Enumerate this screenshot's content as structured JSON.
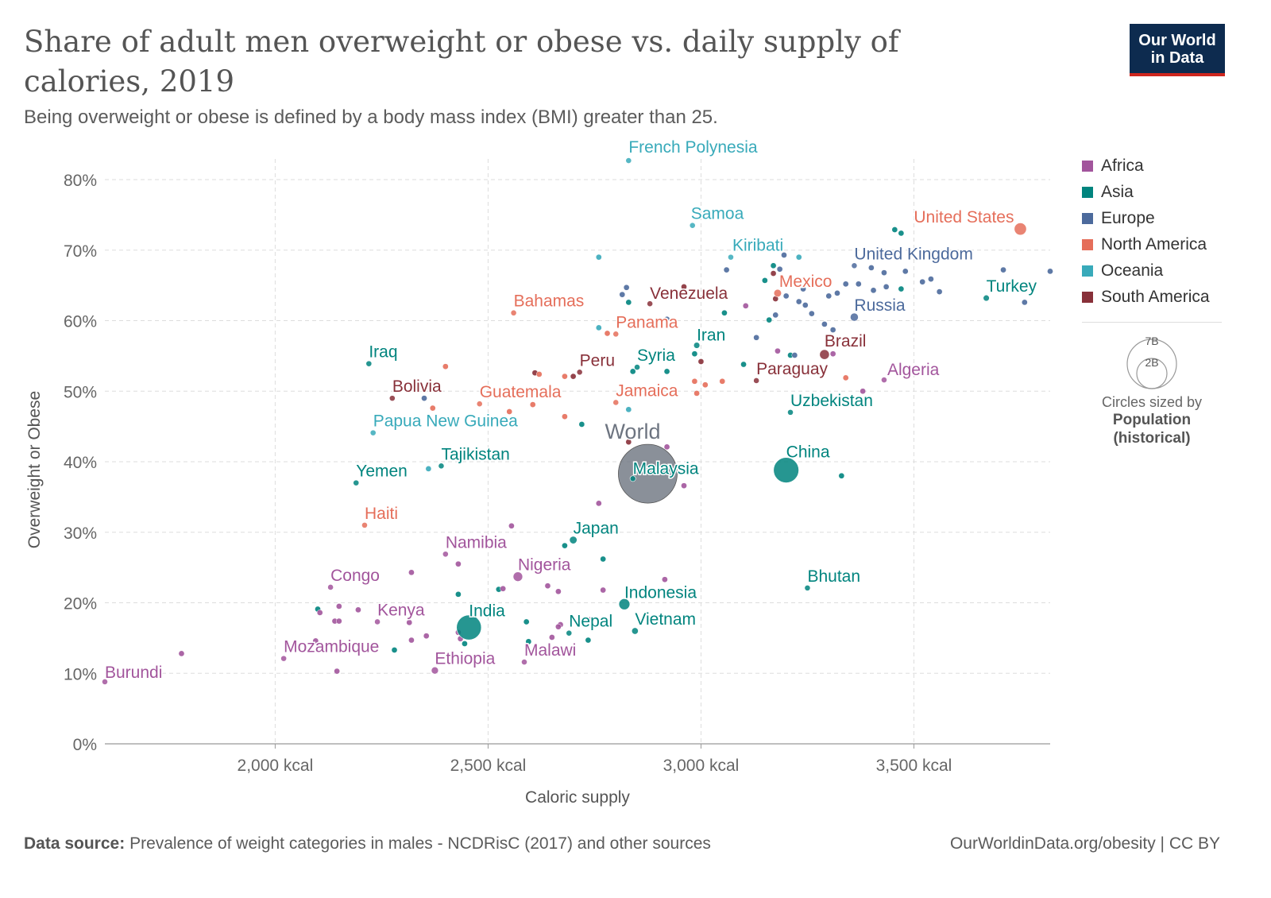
{
  "header": {
    "title": "Share of adult men overweight or obese vs. daily supply of calories, 2019",
    "subtitle": "Being overweight or obese is defined by a body mass index (BMI) greater than 25.",
    "logo_line1": "Our World",
    "logo_line2": "in Data"
  },
  "legend": {
    "items": [
      {
        "label": "Africa",
        "color": "#a2559c"
      },
      {
        "label": "Asia",
        "color": "#00847e"
      },
      {
        "label": "Europe",
        "color": "#4c6a9c"
      },
      {
        "label": "North America",
        "color": "#e56e5a"
      },
      {
        "label": "Oceania",
        "color": "#38aaba"
      },
      {
        "label": "South America",
        "color": "#883039"
      }
    ],
    "size_big": "7B",
    "size_small": "2B",
    "size_note": "Circles sized by",
    "size_var_line1": "Population",
    "size_var_line2": "(historical)"
  },
  "footer": {
    "source_label": "Data source:",
    "source_text": "Prevalence of weight categories in males - NCDRisC (2017) and other sources",
    "credit": "OurWorldinData.org/obesity | CC BY"
  },
  "chart_data": {
    "type": "scatter",
    "title": "Share of adult men overweight or obese vs. daily supply of calories, 2019",
    "xlabel": "Caloric supply",
    "ylabel": "Overweight or Obese",
    "xlim": [
      1600,
      3820
    ],
    "ylim": [
      0,
      80
    ],
    "x_ticks": [
      2000,
      2500,
      3000,
      3500
    ],
    "x_tick_labels": [
      "2,000 kcal",
      "2,500 kcal",
      "3,000 kcal",
      "3,500 kcal"
    ],
    "y_ticks": [
      0,
      10,
      20,
      30,
      40,
      50,
      60,
      70,
      80
    ],
    "y_tick_labels": [
      "0%",
      "10%",
      "20%",
      "30%",
      "40%",
      "50%",
      "60%",
      "70%",
      "80%"
    ],
    "grid": true,
    "colors": {
      "Africa": "#a2559c",
      "Asia": "#00847e",
      "Europe": "#4c6a9c",
      "North America": "#e56e5a",
      "Oceania": "#38aaba",
      "South America": "#883039",
      "World": "#6d7480"
    },
    "labeled_points": [
      {
        "name": "French Polynesia",
        "x": 2830,
        "y": 82.7,
        "region": "Oceania",
        "pop": 0.0003
      },
      {
        "name": "Samoa",
        "x": 2980,
        "y": 73.5,
        "region": "Oceania",
        "pop": 0.0002
      },
      {
        "name": "United States",
        "x": 3750,
        "y": 73,
        "region": "North America",
        "pop": 0.33
      },
      {
        "name": "Kiribati",
        "x": 3070,
        "y": 69,
        "region": "Oceania",
        "pop": 0.0001
      },
      {
        "name": "United Kingdom",
        "x": 3360,
        "y": 67.8,
        "region": "Europe",
        "pop": 0.067
      },
      {
        "name": "Mexico",
        "x": 3180,
        "y": 63.9,
        "region": "North America",
        "pop": 0.13
      },
      {
        "name": "Turkey",
        "x": 3670,
        "y": 63.2,
        "region": "Asia",
        "pop": 0.083
      },
      {
        "name": "Venezuela",
        "x": 2880,
        "y": 62.4,
        "region": "South America",
        "pop": 0.028
      },
      {
        "name": "Bahamas",
        "x": 2560,
        "y": 61.1,
        "region": "North America",
        "pop": 0.0004
      },
      {
        "name": "Russia",
        "x": 3360,
        "y": 60.5,
        "region": "Europe",
        "pop": 0.145
      },
      {
        "name": "Panama",
        "x": 2800,
        "y": 58.1,
        "region": "North America",
        "pop": 0.004
      },
      {
        "name": "Iran",
        "x": 2990,
        "y": 56.5,
        "region": "Asia",
        "pop": 0.084
      },
      {
        "name": "Brazil",
        "x": 3290,
        "y": 55.2,
        "region": "South America",
        "pop": 0.21
      },
      {
        "name": "Iraq",
        "x": 2220,
        "y": 53.9,
        "region": "Asia",
        "pop": 0.04
      },
      {
        "name": "Syria",
        "x": 2850,
        "y": 53.4,
        "region": "Asia",
        "pop": 0.02
      },
      {
        "name": "Peru",
        "x": 2715,
        "y": 52.7,
        "region": "South America",
        "pop": 0.033
      },
      {
        "name": "Paraguay",
        "x": 3130,
        "y": 51.5,
        "region": "South America",
        "pop": 0.007
      },
      {
        "name": "Algeria",
        "x": 3430,
        "y": 51.6,
        "region": "Africa",
        "pop": 0.043
      },
      {
        "name": "Bolivia",
        "x": 2275,
        "y": 49,
        "region": "South America",
        "pop": 0.012
      },
      {
        "name": "Guatemala",
        "x": 2480,
        "y": 48.2,
        "region": "North America",
        "pop": 0.017
      },
      {
        "name": "Jamaica",
        "x": 2800,
        "y": 48.4,
        "region": "North America",
        "pop": 0.003
      },
      {
        "name": "Uzbekistan",
        "x": 3210,
        "y": 47,
        "region": "Asia",
        "pop": 0.034
      },
      {
        "name": "Papua New Guinea",
        "x": 2230,
        "y": 44.1,
        "region": "Oceania",
        "pop": 0.009
      },
      {
        "name": "World",
        "x": 2875,
        "y": 38.3,
        "region": "World",
        "pop": 7.7
      },
      {
        "name": "China",
        "x": 3200,
        "y": 38.8,
        "region": "Asia",
        "pop": 1.42
      },
      {
        "name": "Malaysia",
        "x": 2840,
        "y": 37.6,
        "region": "Asia",
        "pop": 0.032
      },
      {
        "name": "Tajikistan",
        "x": 2390,
        "y": 39.4,
        "region": "Asia",
        "pop": 0.009
      },
      {
        "name": "Yemen",
        "x": 2190,
        "y": 37,
        "region": "Asia",
        "pop": 0.03
      },
      {
        "name": "Haiti",
        "x": 2210,
        "y": 31,
        "region": "North America",
        "pop": 0.011
      },
      {
        "name": "Japan",
        "x": 2700,
        "y": 28.9,
        "region": "Asia",
        "pop": 0.126
      },
      {
        "name": "Namibia",
        "x": 2400,
        "y": 26.9,
        "region": "Africa",
        "pop": 0.0025
      },
      {
        "name": "Nigeria",
        "x": 2570,
        "y": 23.7,
        "region": "Africa",
        "pop": 0.2
      },
      {
        "name": "Congo",
        "x": 2130,
        "y": 22.2,
        "region": "Africa",
        "pop": 0.005
      },
      {
        "name": "Bhutan",
        "x": 3250,
        "y": 22.1,
        "region": "Asia",
        "pop": 0.0008
      },
      {
        "name": "Indonesia",
        "x": 2820,
        "y": 19.8,
        "region": "Asia",
        "pop": 0.27
      },
      {
        "name": "India",
        "x": 2455,
        "y": 16.5,
        "region": "Asia",
        "pop": 1.37
      },
      {
        "name": "Kenya",
        "x": 2240,
        "y": 17.3,
        "region": "Africa",
        "pop": 0.052
      },
      {
        "name": "Nepal",
        "x": 2690,
        "y": 15.7,
        "region": "Asia",
        "pop": 0.029
      },
      {
        "name": "Vietnam",
        "x": 2845,
        "y": 16,
        "region": "Asia",
        "pop": 0.096
      },
      {
        "name": "Mozambique",
        "x": 2020,
        "y": 12.1,
        "region": "Africa",
        "pop": 0.03
      },
      {
        "name": "Malawi",
        "x": 2585,
        "y": 11.6,
        "region": "Africa",
        "pop": 0.019
      },
      {
        "name": "Ethiopia",
        "x": 2375,
        "y": 10.4,
        "region": "Africa",
        "pop": 0.112
      },
      {
        "name": "Burundi",
        "x": 1600,
        "y": 8.8,
        "region": "Africa",
        "pop": 0.012
      }
    ],
    "unlabeled_points": [
      {
        "x": 3470,
        "y": 72.4,
        "region": "Asia"
      },
      {
        "x": 3455,
        "y": 72.9,
        "region": "Asia"
      },
      {
        "x": 2760,
        "y": 69,
        "region": "Oceania"
      },
      {
        "x": 3230,
        "y": 69,
        "region": "Oceania"
      },
      {
        "x": 3195,
        "y": 69.3,
        "region": "Europe"
      },
      {
        "x": 3170,
        "y": 67.8,
        "region": "Asia"
      },
      {
        "x": 3185,
        "y": 67.3,
        "region": "Europe"
      },
      {
        "x": 3170,
        "y": 66.7,
        "region": "South America"
      },
      {
        "x": 3150,
        "y": 65.7,
        "region": "Asia"
      },
      {
        "x": 3060,
        "y": 67.2,
        "region": "Europe"
      },
      {
        "x": 3340,
        "y": 65.2,
        "region": "Europe"
      },
      {
        "x": 3370,
        "y": 65.2,
        "region": "Europe"
      },
      {
        "x": 3400,
        "y": 67.5,
        "region": "Europe"
      },
      {
        "x": 3430,
        "y": 66.8,
        "region": "Europe"
      },
      {
        "x": 3480,
        "y": 67,
        "region": "Europe"
      },
      {
        "x": 3520,
        "y": 65.5,
        "region": "Europe"
      },
      {
        "x": 3540,
        "y": 65.9,
        "region": "Europe"
      },
      {
        "x": 3560,
        "y": 64.1,
        "region": "Europe"
      },
      {
        "x": 3710,
        "y": 67.2,
        "region": "Europe"
      },
      {
        "x": 3820,
        "y": 67,
        "region": "Europe"
      },
      {
        "x": 3760,
        "y": 62.6,
        "region": "Europe"
      },
      {
        "x": 3470,
        "y": 64.5,
        "region": "Asia"
      },
      {
        "x": 3435,
        "y": 64.8,
        "region": "Europe"
      },
      {
        "x": 3405,
        "y": 64.3,
        "region": "Europe"
      },
      {
        "x": 3320,
        "y": 63.9,
        "region": "Europe"
      },
      {
        "x": 3300,
        "y": 63.5,
        "region": "Europe"
      },
      {
        "x": 3240,
        "y": 64.5,
        "region": "Europe"
      },
      {
        "x": 3230,
        "y": 62.7,
        "region": "Europe"
      },
      {
        "x": 3245,
        "y": 62.2,
        "region": "Europe"
      },
      {
        "x": 3200,
        "y": 63.5,
        "region": "Europe"
      },
      {
        "x": 3175,
        "y": 63.1,
        "region": "South America"
      },
      {
        "x": 3260,
        "y": 61,
        "region": "Europe"
      },
      {
        "x": 3290,
        "y": 59.5,
        "region": "Europe"
      },
      {
        "x": 3310,
        "y": 58.7,
        "region": "Europe"
      },
      {
        "x": 3160,
        "y": 60.1,
        "region": "Asia"
      },
      {
        "x": 3175,
        "y": 60.8,
        "region": "Europe"
      },
      {
        "x": 3105,
        "y": 62.1,
        "region": "Africa"
      },
      {
        "x": 3055,
        "y": 61.1,
        "region": "Asia"
      },
      {
        "x": 2960,
        "y": 64.8,
        "region": "South America"
      },
      {
        "x": 2825,
        "y": 64.7,
        "region": "Europe"
      },
      {
        "x": 2815,
        "y": 63.7,
        "region": "Europe"
      },
      {
        "x": 2830,
        "y": 62.6,
        "region": "Asia"
      },
      {
        "x": 2760,
        "y": 59,
        "region": "Oceania"
      },
      {
        "x": 2780,
        "y": 58.2,
        "region": "North America"
      },
      {
        "x": 2920,
        "y": 60.2,
        "region": "Europe"
      },
      {
        "x": 3130,
        "y": 57.6,
        "region": "Europe"
      },
      {
        "x": 3180,
        "y": 55.7,
        "region": "Africa"
      },
      {
        "x": 3210,
        "y": 55.1,
        "region": "Asia"
      },
      {
        "x": 3220,
        "y": 55.1,
        "region": "Europe"
      },
      {
        "x": 3310,
        "y": 55.3,
        "region": "Africa"
      },
      {
        "x": 2985,
        "y": 55.3,
        "region": "Asia"
      },
      {
        "x": 3000,
        "y": 54.2,
        "region": "South America"
      },
      {
        "x": 3100,
        "y": 53.8,
        "region": "Asia"
      },
      {
        "x": 2920,
        "y": 52.8,
        "region": "Asia"
      },
      {
        "x": 2840,
        "y": 52.8,
        "region": "Asia"
      },
      {
        "x": 2610,
        "y": 52.6,
        "region": "South America"
      },
      {
        "x": 2620,
        "y": 52.4,
        "region": "North America"
      },
      {
        "x": 2680,
        "y": 52.1,
        "region": "North America"
      },
      {
        "x": 2700,
        "y": 52.1,
        "region": "South America"
      },
      {
        "x": 2400,
        "y": 53.5,
        "region": "North America"
      },
      {
        "x": 2985,
        "y": 51.4,
        "region": "North America"
      },
      {
        "x": 3010,
        "y": 50.9,
        "region": "North America"
      },
      {
        "x": 3050,
        "y": 51.4,
        "region": "North America"
      },
      {
        "x": 2990,
        "y": 49.7,
        "region": "North America"
      },
      {
        "x": 3340,
        "y": 51.9,
        "region": "North America"
      },
      {
        "x": 3380,
        "y": 50,
        "region": "Africa"
      },
      {
        "x": 2350,
        "y": 49,
        "region": "Europe"
      },
      {
        "x": 2370,
        "y": 47.6,
        "region": "North America"
      },
      {
        "x": 2550,
        "y": 47.1,
        "region": "North America"
      },
      {
        "x": 2605,
        "y": 48.1,
        "region": "North America"
      },
      {
        "x": 2680,
        "y": 46.4,
        "region": "North America"
      },
      {
        "x": 2720,
        "y": 45.3,
        "region": "Asia"
      },
      {
        "x": 2830,
        "y": 47.4,
        "region": "Oceania"
      },
      {
        "x": 2830,
        "y": 42.8,
        "region": "South America"
      },
      {
        "x": 2920,
        "y": 42.1,
        "region": "Africa"
      },
      {
        "x": 2360,
        "y": 39,
        "region": "Oceania"
      },
      {
        "x": 2960,
        "y": 36.6,
        "region": "Africa"
      },
      {
        "x": 3330,
        "y": 38,
        "region": "Asia"
      },
      {
        "x": 2760,
        "y": 34.1,
        "region": "Africa"
      },
      {
        "x": 2555,
        "y": 30.9,
        "region": "Africa"
      },
      {
        "x": 2680,
        "y": 28.1,
        "region": "Asia"
      },
      {
        "x": 2770,
        "y": 26.2,
        "region": "Asia"
      },
      {
        "x": 2430,
        "y": 25.5,
        "region": "Africa"
      },
      {
        "x": 2320,
        "y": 24.3,
        "region": "Africa"
      },
      {
        "x": 2640,
        "y": 22.4,
        "region": "Africa"
      },
      {
        "x": 2665,
        "y": 21.6,
        "region": "Africa"
      },
      {
        "x": 2525,
        "y": 21.9,
        "region": "Asia"
      },
      {
        "x": 2535,
        "y": 22,
        "region": "Africa"
      },
      {
        "x": 2430,
        "y": 21.2,
        "region": "Asia"
      },
      {
        "x": 2915,
        "y": 23.3,
        "region": "Africa"
      },
      {
        "x": 2770,
        "y": 21.8,
        "region": "Africa"
      },
      {
        "x": 2100,
        "y": 19.1,
        "region": "Asia"
      },
      {
        "x": 2105,
        "y": 18.6,
        "region": "Africa"
      },
      {
        "x": 2150,
        "y": 19.5,
        "region": "Africa"
      },
      {
        "x": 2195,
        "y": 19,
        "region": "Africa"
      },
      {
        "x": 2140,
        "y": 17.4,
        "region": "Africa"
      },
      {
        "x": 2150,
        "y": 17.4,
        "region": "Africa"
      },
      {
        "x": 2315,
        "y": 17.2,
        "region": "Africa"
      },
      {
        "x": 2590,
        "y": 17.3,
        "region": "Asia"
      },
      {
        "x": 2670,
        "y": 16.9,
        "region": "Africa"
      },
      {
        "x": 2665,
        "y": 16.6,
        "region": "Africa"
      },
      {
        "x": 2740,
        "y": 17.6,
        "region": "Africa"
      },
      {
        "x": 2095,
        "y": 14.6,
        "region": "Africa"
      },
      {
        "x": 2320,
        "y": 14.7,
        "region": "Africa"
      },
      {
        "x": 2355,
        "y": 15.3,
        "region": "Africa"
      },
      {
        "x": 2430,
        "y": 15.8,
        "region": "Africa"
      },
      {
        "x": 2435,
        "y": 14.9,
        "region": "Africa"
      },
      {
        "x": 2445,
        "y": 14.2,
        "region": "Asia"
      },
      {
        "x": 2595,
        "y": 14.5,
        "region": "Asia"
      },
      {
        "x": 2650,
        "y": 15.1,
        "region": "Africa"
      },
      {
        "x": 2735,
        "y": 14.7,
        "region": "Asia"
      },
      {
        "x": 2280,
        "y": 13.3,
        "region": "Asia"
      },
      {
        "x": 1780,
        "y": 12.8,
        "region": "Africa"
      },
      {
        "x": 2145,
        "y": 10.3,
        "region": "Africa"
      }
    ]
  }
}
